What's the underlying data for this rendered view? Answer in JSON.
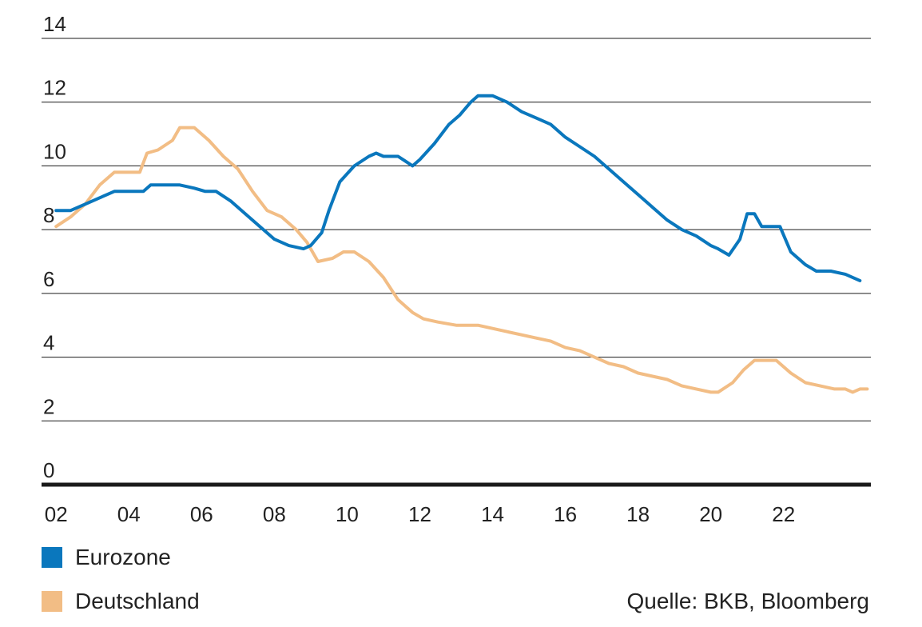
{
  "chart_data": {
    "type": "line",
    "title": "",
    "xlabel": "",
    "ylabel": "",
    "ylim": [
      0,
      14
    ],
    "xlim": [
      2001.6,
      2024.4
    ],
    "yticks": [
      "0",
      "2",
      "4",
      "6",
      "8",
      "10",
      "12",
      "14"
    ],
    "xticks": [
      {
        "label": "02",
        "value": 2002
      },
      {
        "label": "04",
        "value": 2004
      },
      {
        "label": "06",
        "value": 2006
      },
      {
        "label": "08",
        "value": 2008
      },
      {
        "label": "10",
        "value": 2010
      },
      {
        "label": "12",
        "value": 2012
      },
      {
        "label": "14",
        "value": 2014
      },
      {
        "label": "16",
        "value": 2016
      },
      {
        "label": "18",
        "value": 2018
      },
      {
        "label": "20",
        "value": 2020
      },
      {
        "label": "22",
        "value": 2022
      }
    ],
    "grid": "horizontal",
    "legend_position": "bottom-left",
    "series": [
      {
        "name": "Eurozone",
        "color": "#0a77bd",
        "points": [
          [
            2002.0,
            8.6
          ],
          [
            2002.4,
            8.6
          ],
          [
            2002.8,
            8.8
          ],
          [
            2003.2,
            9.0
          ],
          [
            2003.6,
            9.2
          ],
          [
            2004.0,
            9.2
          ],
          [
            2004.4,
            9.2
          ],
          [
            2004.6,
            9.4
          ],
          [
            2005.0,
            9.4
          ],
          [
            2005.4,
            9.4
          ],
          [
            2005.8,
            9.3
          ],
          [
            2006.1,
            9.2
          ],
          [
            2006.4,
            9.2
          ],
          [
            2006.8,
            8.9
          ],
          [
            2007.2,
            8.5
          ],
          [
            2007.6,
            8.1
          ],
          [
            2008.0,
            7.7
          ],
          [
            2008.4,
            7.5
          ],
          [
            2008.8,
            7.4
          ],
          [
            2009.0,
            7.5
          ],
          [
            2009.3,
            7.9
          ],
          [
            2009.5,
            8.6
          ],
          [
            2009.8,
            9.5
          ],
          [
            2010.2,
            10.0
          ],
          [
            2010.6,
            10.3
          ],
          [
            2010.8,
            10.4
          ],
          [
            2011.0,
            10.3
          ],
          [
            2011.4,
            10.3
          ],
          [
            2011.8,
            10.0
          ],
          [
            2012.0,
            10.2
          ],
          [
            2012.4,
            10.7
          ],
          [
            2012.8,
            11.3
          ],
          [
            2013.1,
            11.6
          ],
          [
            2013.4,
            12.0
          ],
          [
            2013.6,
            12.2
          ],
          [
            2014.0,
            12.2
          ],
          [
            2014.4,
            12.0
          ],
          [
            2014.8,
            11.7
          ],
          [
            2015.2,
            11.5
          ],
          [
            2015.6,
            11.3
          ],
          [
            2016.0,
            10.9
          ],
          [
            2016.4,
            10.6
          ],
          [
            2016.8,
            10.3
          ],
          [
            2017.2,
            9.9
          ],
          [
            2017.6,
            9.5
          ],
          [
            2018.0,
            9.1
          ],
          [
            2018.4,
            8.7
          ],
          [
            2018.8,
            8.3
          ],
          [
            2019.2,
            8.0
          ],
          [
            2019.6,
            7.8
          ],
          [
            2020.0,
            7.5
          ],
          [
            2020.2,
            7.4
          ],
          [
            2020.5,
            7.2
          ],
          [
            2020.8,
            7.7
          ],
          [
            2021.0,
            8.5
          ],
          [
            2021.2,
            8.5
          ],
          [
            2021.4,
            8.1
          ],
          [
            2021.9,
            8.1
          ],
          [
            2022.2,
            7.3
          ],
          [
            2022.6,
            6.9
          ],
          [
            2022.9,
            6.7
          ],
          [
            2023.3,
            6.7
          ],
          [
            2023.7,
            6.6
          ],
          [
            2023.9,
            6.5
          ],
          [
            2024.1,
            6.4
          ]
        ]
      },
      {
        "name": "Deutschland",
        "color": "#f2bd85",
        "points": [
          [
            2002.0,
            8.1
          ],
          [
            2002.4,
            8.4
          ],
          [
            2002.8,
            8.8
          ],
          [
            2003.2,
            9.4
          ],
          [
            2003.6,
            9.8
          ],
          [
            2004.0,
            9.8
          ],
          [
            2004.3,
            9.8
          ],
          [
            2004.5,
            10.4
          ],
          [
            2004.8,
            10.5
          ],
          [
            2005.2,
            10.8
          ],
          [
            2005.4,
            11.2
          ],
          [
            2005.8,
            11.2
          ],
          [
            2006.2,
            10.8
          ],
          [
            2006.6,
            10.3
          ],
          [
            2007.0,
            9.9
          ],
          [
            2007.4,
            9.2
          ],
          [
            2007.8,
            8.6
          ],
          [
            2008.2,
            8.4
          ],
          [
            2008.6,
            8.0
          ],
          [
            2008.9,
            7.6
          ],
          [
            2009.2,
            7.0
          ],
          [
            2009.6,
            7.1
          ],
          [
            2009.9,
            7.3
          ],
          [
            2010.2,
            7.3
          ],
          [
            2010.6,
            7.0
          ],
          [
            2011.0,
            6.5
          ],
          [
            2011.4,
            5.8
          ],
          [
            2011.8,
            5.4
          ],
          [
            2012.1,
            5.2
          ],
          [
            2012.5,
            5.1
          ],
          [
            2013.0,
            5.0
          ],
          [
            2013.3,
            5.0
          ],
          [
            2013.6,
            5.0
          ],
          [
            2014.0,
            4.9
          ],
          [
            2014.4,
            4.8
          ],
          [
            2014.8,
            4.7
          ],
          [
            2015.2,
            4.6
          ],
          [
            2015.6,
            4.5
          ],
          [
            2016.0,
            4.3
          ],
          [
            2016.4,
            4.2
          ],
          [
            2016.8,
            4.0
          ],
          [
            2017.2,
            3.8
          ],
          [
            2017.6,
            3.7
          ],
          [
            2018.0,
            3.5
          ],
          [
            2018.4,
            3.4
          ],
          [
            2018.8,
            3.3
          ],
          [
            2019.2,
            3.1
          ],
          [
            2019.6,
            3.0
          ],
          [
            2020.0,
            2.9
          ],
          [
            2020.2,
            2.9
          ],
          [
            2020.6,
            3.2
          ],
          [
            2020.9,
            3.6
          ],
          [
            2021.2,
            3.9
          ],
          [
            2021.8,
            3.9
          ],
          [
            2022.2,
            3.5
          ],
          [
            2022.6,
            3.2
          ],
          [
            2023.0,
            3.1
          ],
          [
            2023.4,
            3.0
          ],
          [
            2023.7,
            3.0
          ],
          [
            2023.9,
            2.9
          ],
          [
            2024.1,
            3.0
          ],
          [
            2024.3,
            3.0
          ]
        ]
      }
    ]
  },
  "legend": {
    "eurozone": {
      "label": "Eurozone",
      "color": "#0a77bd"
    },
    "deutschland": {
      "label": "Deutschland",
      "color": "#f2bd85"
    }
  },
  "source": "Quelle: BKB, Bloomberg"
}
